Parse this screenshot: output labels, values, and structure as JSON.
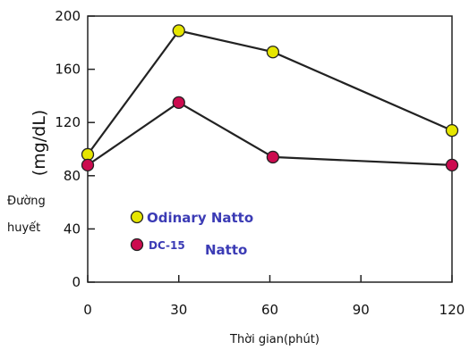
{
  "chart_data": {
    "type": "line",
    "title": "",
    "xlabel": "Thời gian(phút)",
    "ylabel_unit": "(mg/dL)",
    "ylabel_word_1": "Đường",
    "ylabel_word_2": "huyết",
    "xlim": [
      0,
      120
    ],
    "ylim": [
      0,
      200
    ],
    "x_ticks": [
      0,
      30,
      60,
      90,
      120
    ],
    "y_ticks": [
      0,
      40,
      80,
      120,
      160,
      200
    ],
    "x": [
      0,
      30,
      61,
      120
    ],
    "grid": false,
    "legend_position": "lower-left",
    "series": [
      {
        "name": "Odinary Natto",
        "values": [
          96,
          189,
          173,
          114
        ],
        "marker_color": "#e6e600",
        "label_color": "#3b3bb5"
      },
      {
        "name_prefix": "DC-15",
        "name_suffix": "Natto",
        "values": [
          88,
          135,
          94,
          88
        ],
        "marker_color": "#cc0b4f",
        "label_color": "#3b3bb5"
      }
    ]
  }
}
